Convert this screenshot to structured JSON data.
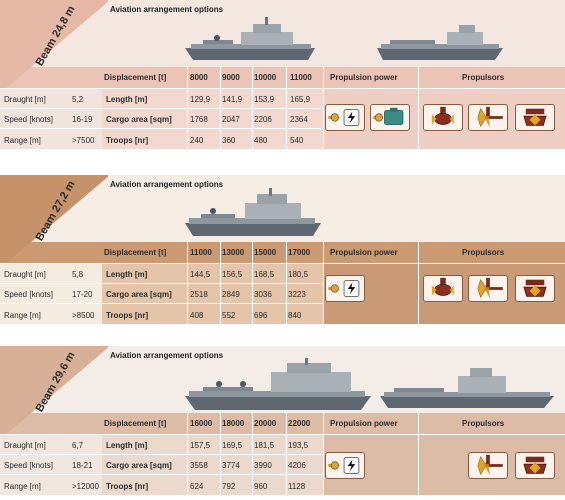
{
  "column_headers": {
    "displacement": "Displacement [t]",
    "propulsion_power": "Propulsion power",
    "propulsors": "Propulsors"
  },
  "row_labels": {
    "draught": "Draught [m]",
    "speed": "Speed [knots]",
    "range": "Range [m]",
    "length": "Length [m]",
    "cargo": "Cargo area [sqm]",
    "troops": "Troops [nr]"
  },
  "aviation_title": "Aviation arrangement options",
  "variants": [
    {
      "beam": "Beam 24,8 m",
      "draught": "5,2",
      "speed": "16-19",
      "range": ">7500",
      "displacements": [
        "8000",
        "9000",
        "10000",
        "11000"
      ],
      "length": [
        "129,9",
        "141,9",
        "153,9",
        "165,9"
      ],
      "cargo": [
        "1768",
        "2047",
        "2206",
        "2364"
      ],
      "troops": [
        "240",
        "360",
        "480",
        "540"
      ]
    },
    {
      "beam": "Beam 27,2 m",
      "draught": "5,8",
      "speed": "17-20",
      "range": ">8500",
      "displacements": [
        "11000",
        "13000",
        "15000",
        "17000"
      ],
      "length": [
        "144,5",
        "156,5",
        "168,5",
        "180,5"
      ],
      "cargo": [
        "2518",
        "2849",
        "3036",
        "3223"
      ],
      "troops": [
        "408",
        "552",
        "696",
        "840"
      ]
    },
    {
      "beam": "Beam 29,6 m",
      "draught": "6,7",
      "speed": "18-21",
      "range": ">12000",
      "displacements": [
        "16000",
        "18000",
        "20000",
        "22000"
      ],
      "length": [
        "157,5",
        "169,5",
        "181,5",
        "193,5"
      ],
      "cargo": [
        "3558",
        "3774",
        "3990",
        "4206"
      ],
      "troops": [
        "624",
        "792",
        "960",
        "1128"
      ]
    }
  ],
  "icons": {
    "electric": "electric-motor-icon",
    "diesel": "diesel-engine-icon",
    "pod": "azimuth-pod-icon",
    "shaft": "shaft-propeller-icon",
    "thruster": "thruster-icon"
  }
}
